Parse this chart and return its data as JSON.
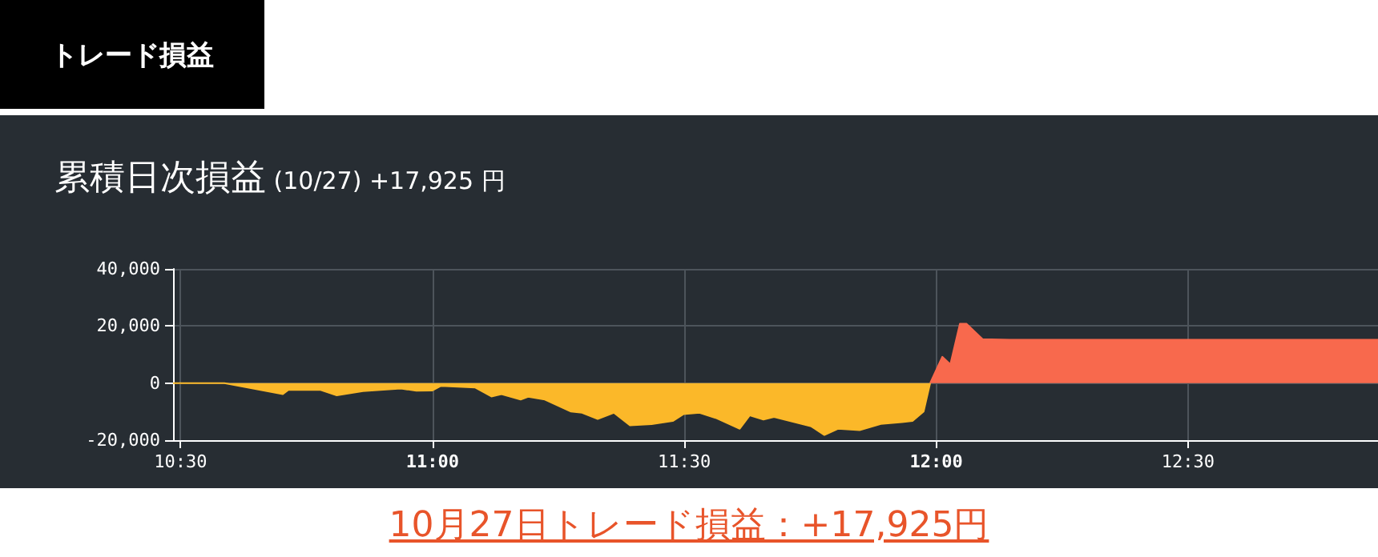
{
  "chart_data": {
    "type": "area",
    "title": "トレード損益",
    "subtitle": "累積日次損益 (10/27) +17,925 円",
    "annotations": [
      "10月27日トレード損益：+17,925円"
    ],
    "series": [
      {
        "color": "#fbb829",
        "x": [
          10.485,
          10.587,
          10.703,
          10.714,
          10.778,
          10.81,
          10.862,
          10.937,
          10.968,
          11.0,
          11.017,
          11.085,
          11.117,
          11.137,
          11.175,
          11.19,
          11.223,
          11.275,
          11.297,
          11.328,
          11.36,
          11.392,
          11.435,
          11.477,
          11.498,
          11.53,
          11.562,
          11.61,
          11.63,
          11.657,
          11.678,
          11.752,
          11.778,
          11.805,
          11.848,
          11.89,
          11.932,
          11.953,
          11.975,
          11.988
        ],
        "values": [
          0,
          0,
          -3900,
          -2400,
          -2400,
          -4300,
          -2800,
          -1900,
          -2700,
          -2600,
          -1000,
          -1600,
          -4700,
          -3900,
          -5800,
          -4800,
          -5800,
          -10000,
          -10400,
          -12600,
          -10400,
          -14800,
          -14400,
          -13300,
          -10900,
          -10400,
          -12200,
          -16000,
          -11300,
          -12800,
          -11900,
          -15200,
          -18200,
          -16000,
          -16500,
          -14300,
          -13700,
          -13300,
          -10000,
          0
        ]
      },
      {
        "color": "#f8694d",
        "x": [
          11.988,
          12.012,
          12.028,
          12.047,
          12.06,
          12.092,
          12.145,
          12.877
        ],
        "values": [
          0,
          9200,
          6600,
          20800,
          20800,
          15400,
          15200,
          15200
        ]
      }
    ],
    "xlim": [
      10.485,
      12.877
    ],
    "xticks": [
      {
        "value": 10.5,
        "label": "10:30"
      },
      {
        "value": 11,
        "label": "11:00"
      },
      {
        "value": 11.5,
        "label": "11:30"
      },
      {
        "value": 12,
        "label": "12:00"
      },
      {
        "value": 12.5,
        "label": "12:30"
      }
    ],
    "ylim": [
      -20000,
      40000
    ],
    "yticks": [
      {
        "value": -20000,
        "label": "-20,000"
      },
      {
        "value": 0,
        "label": "0"
      },
      {
        "value": 20000,
        "label": "20,000"
      },
      {
        "value": 40000,
        "label": "40,000"
      }
    ],
    "grid": true,
    "marker": "none"
  }
}
